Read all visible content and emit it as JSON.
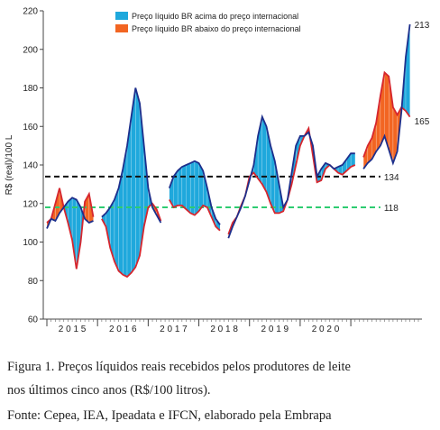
{
  "chart_data": {
    "type": "line",
    "ylabel": "R$ (real)/100 L",
    "ylim": [
      60,
      220
    ],
    "yticks": [
      60,
      80,
      100,
      120,
      140,
      160,
      180,
      200,
      220
    ],
    "years": [
      "2015",
      "2016",
      "2017",
      "2018",
      "2019",
      "2020"
    ],
    "legend": {
      "placement": "top",
      "items": [
        {
          "label": "Preço líquido BR acima do preço internacional",
          "color": "#1fa8dc"
        },
        {
          "label": "Preço líquido BR abaixo do preço internacional",
          "color": "#f26522"
        }
      ]
    },
    "reference_lines": [
      {
        "value": 134,
        "label": "134",
        "color": "#111111",
        "style": "dashed"
      },
      {
        "value": 118,
        "label": "118",
        "color": "#2ecc71",
        "style": "dashed"
      }
    ],
    "end_labels": [
      {
        "value": 213,
        "label": "213"
      },
      {
        "value": 165,
        "label": "165"
      }
    ],
    "colors": {
      "brazil_line": "#1d2f8c",
      "international_line": "#d6262e"
    },
    "segments": [
      {
        "x": [
          0,
          1,
          2,
          3,
          4,
          5,
          6,
          7,
          8,
          9,
          10,
          11
        ],
        "br": [
          107,
          112,
          111,
          115,
          118,
          121,
          123,
          122,
          118,
          112,
          110,
          111
        ],
        "intl": [
          110,
          112,
          120,
          128,
          118,
          110,
          101,
          86,
          100,
          121,
          125,
          113
        ]
      },
      {
        "x": [
          13,
          14,
          15,
          16,
          17,
          18,
          19,
          20,
          21,
          22,
          23,
          24,
          25,
          26,
          27
        ],
        "br": [
          113,
          115,
          118,
          122,
          128,
          138,
          150,
          165,
          180,
          172,
          150,
          128,
          118,
          114,
          110
        ],
        "intl": [
          112,
          108,
          97,
          90,
          85,
          83,
          82,
          84,
          87,
          93,
          108,
          118,
          120,
          117,
          111
        ]
      },
      {
        "x": [
          29,
          30,
          31,
          32,
          33,
          34,
          35,
          36,
          37,
          38,
          39,
          40,
          41
        ],
        "br": [
          128,
          134,
          137,
          139,
          140,
          141,
          142,
          141,
          137,
          128,
          118,
          112,
          109
        ],
        "intl": [
          122,
          118,
          119,
          119,
          117,
          115,
          114,
          116,
          119,
          118,
          113,
          108,
          106
        ]
      },
      {
        "x": [
          43,
          44,
          45,
          46,
          47,
          48,
          49,
          50,
          51,
          52,
          53,
          54,
          55,
          56,
          57,
          58,
          59,
          60,
          61,
          62,
          63,
          64,
          65,
          66,
          67,
          68,
          69,
          70,
          71,
          72,
          73
        ],
        "br": [
          102,
          108,
          113,
          118,
          124,
          132,
          140,
          155,
          165,
          160,
          150,
          142,
          130,
          118,
          122,
          136,
          150,
          155,
          155,
          157,
          150,
          134,
          138,
          141,
          140,
          138,
          139,
          140,
          143,
          146,
          146
        ],
        "intl": [
          104,
          110,
          113,
          119,
          124,
          134,
          136,
          133,
          130,
          126,
          120,
          115,
          115,
          116,
          122,
          130,
          140,
          150,
          155,
          159,
          145,
          131,
          132,
          138,
          140,
          138,
          136,
          135,
          137,
          139,
          140
        ]
      },
      {
        "x": [
          75,
          76,
          77,
          78,
          79,
          80,
          81,
          82,
          83,
          84,
          85,
          86
        ],
        "br": [
          138,
          141,
          143,
          147,
          150,
          155,
          148,
          141,
          147,
          168,
          196,
          213
        ],
        "intl": [
          144,
          150,
          154,
          162,
          176,
          188,
          186,
          170,
          166,
          170,
          168,
          165
        ]
      }
    ]
  },
  "caption": {
    "line1": "Figura 1. Preços líquidos reais recebidos pelos produtores de leite",
    "line2": "nos últimos cinco anos (R$/100 litros).",
    "line3": "Fonte: Cepea, IEA, Ipeadata e IFCN, elaborado pela Embrapa"
  }
}
